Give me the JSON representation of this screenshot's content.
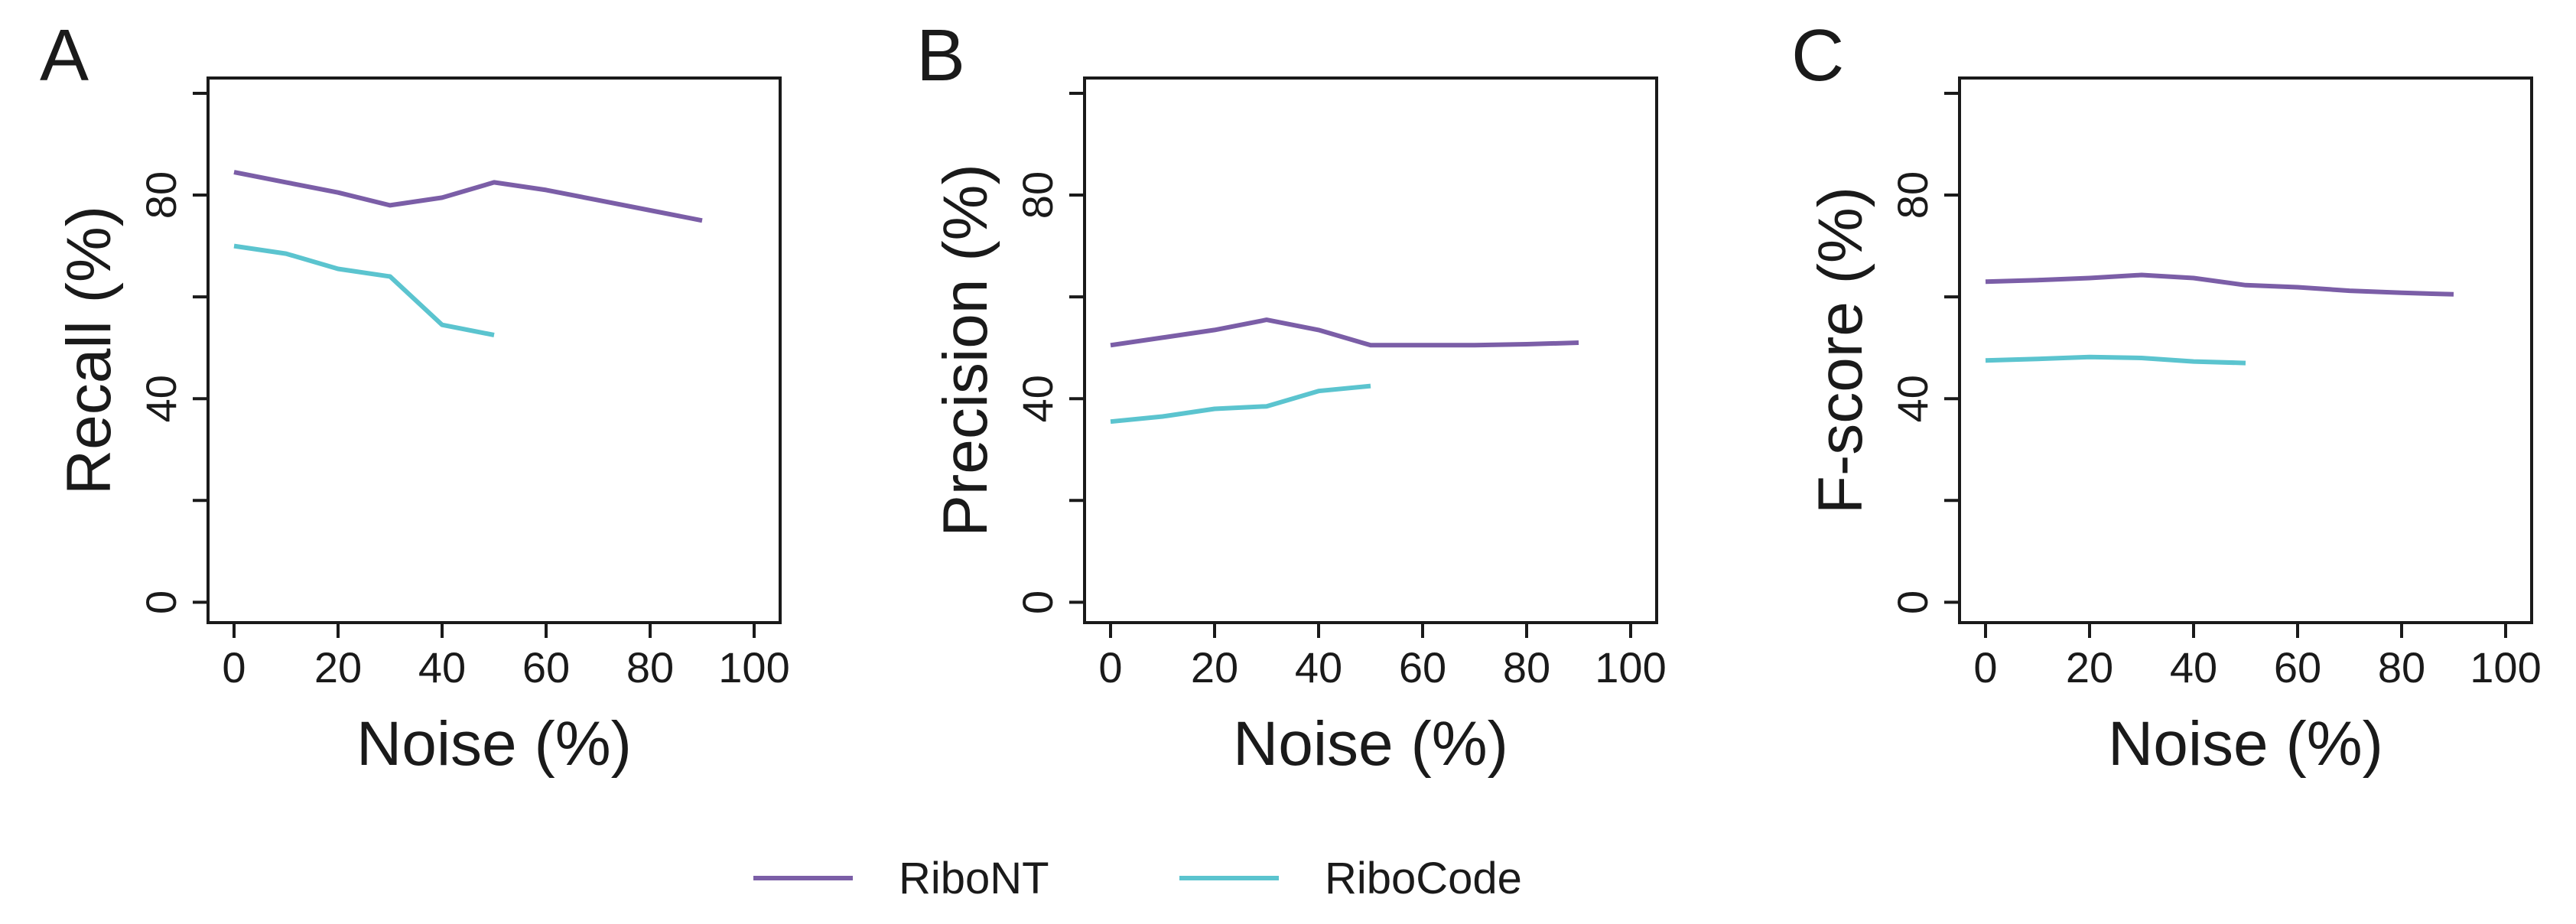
{
  "legend": [
    {
      "name": "RiboNT",
      "color": "#7B5EA7"
    },
    {
      "name": "RiboCode",
      "color": "#5BC4CF"
    }
  ],
  "chart_data": [
    {
      "type": "line",
      "panel_label": "A",
      "title": "",
      "xlabel": "Noise (%)",
      "ylabel": "Recall (%)",
      "xlim": [
        -5,
        105
      ],
      "ylim": [
        -4,
        103
      ],
      "xticks": [
        0,
        20,
        40,
        60,
        80,
        100
      ],
      "xtick_labels": [
        "0",
        "20",
        "40",
        "60",
        "80",
        "100"
      ],
      "yticks": [
        0,
        20,
        40,
        60,
        80,
        100
      ],
      "ytick_labels": [
        "0",
        "",
        "40",
        "",
        "80",
        ""
      ],
      "series": [
        {
          "name": "RiboNT",
          "color": "#7B5EA7",
          "x": [
            0,
            10,
            20,
            30,
            40,
            50,
            60,
            70,
            80,
            90
          ],
          "y": [
            84.5,
            82.5,
            80.5,
            78,
            79.5,
            82.5,
            81,
            79,
            77,
            75
          ]
        },
        {
          "name": "RiboCode",
          "color": "#5BC4CF",
          "x": [
            0,
            10,
            20,
            30,
            40,
            50
          ],
          "y": [
            70,
            68.5,
            65.5,
            64,
            54.5,
            52.5
          ]
        }
      ]
    },
    {
      "type": "line",
      "panel_label": "B",
      "title": "",
      "xlabel": "Noise (%)",
      "ylabel": "Precision (%)",
      "xlim": [
        -5,
        105
      ],
      "ylim": [
        -4,
        103
      ],
      "xticks": [
        0,
        20,
        40,
        60,
        80,
        100
      ],
      "xtick_labels": [
        "0",
        "20",
        "40",
        "60",
        "80",
        "100"
      ],
      "yticks": [
        0,
        20,
        40,
        60,
        80,
        100
      ],
      "ytick_labels": [
        "0",
        "",
        "40",
        "",
        "80",
        ""
      ],
      "series": [
        {
          "name": "RiboNT",
          "color": "#7B5EA7",
          "x": [
            0,
            10,
            20,
            30,
            40,
            50,
            60,
            70,
            80,
            90
          ],
          "y": [
            50.5,
            52,
            53.5,
            55.5,
            53.5,
            50.5,
            50.5,
            50.5,
            50.7,
            51
          ]
        },
        {
          "name": "RiboCode",
          "color": "#5BC4CF",
          "x": [
            0,
            10,
            20,
            30,
            40,
            50
          ],
          "y": [
            35.5,
            36.5,
            38,
            38.5,
            41.5,
            42.5
          ]
        }
      ]
    },
    {
      "type": "line",
      "panel_label": "C",
      "title": "",
      "xlabel": "Noise (%)",
      "ylabel": "F-score (%)",
      "xlim": [
        -5,
        105
      ],
      "ylim": [
        -4,
        103
      ],
      "xticks": [
        0,
        20,
        40,
        60,
        80,
        100
      ],
      "xtick_labels": [
        "0",
        "20",
        "40",
        "60",
        "80",
        "100"
      ],
      "yticks": [
        0,
        20,
        40,
        60,
        80,
        100
      ],
      "ytick_labels": [
        "0",
        "",
        "40",
        "",
        "80",
        ""
      ],
      "series": [
        {
          "name": "RiboNT",
          "color": "#7B5EA7",
          "x": [
            0,
            10,
            20,
            30,
            40,
            50,
            60,
            70,
            80,
            90
          ],
          "y": [
            63,
            63.3,
            63.7,
            64.3,
            63.7,
            62.3,
            61.9,
            61.2,
            60.8,
            60.5
          ]
        },
        {
          "name": "RiboCode",
          "color": "#5BC4CF",
          "x": [
            0,
            10,
            20,
            30,
            40,
            50
          ],
          "y": [
            47.5,
            47.8,
            48.2,
            48,
            47.3,
            47
          ]
        }
      ]
    }
  ]
}
